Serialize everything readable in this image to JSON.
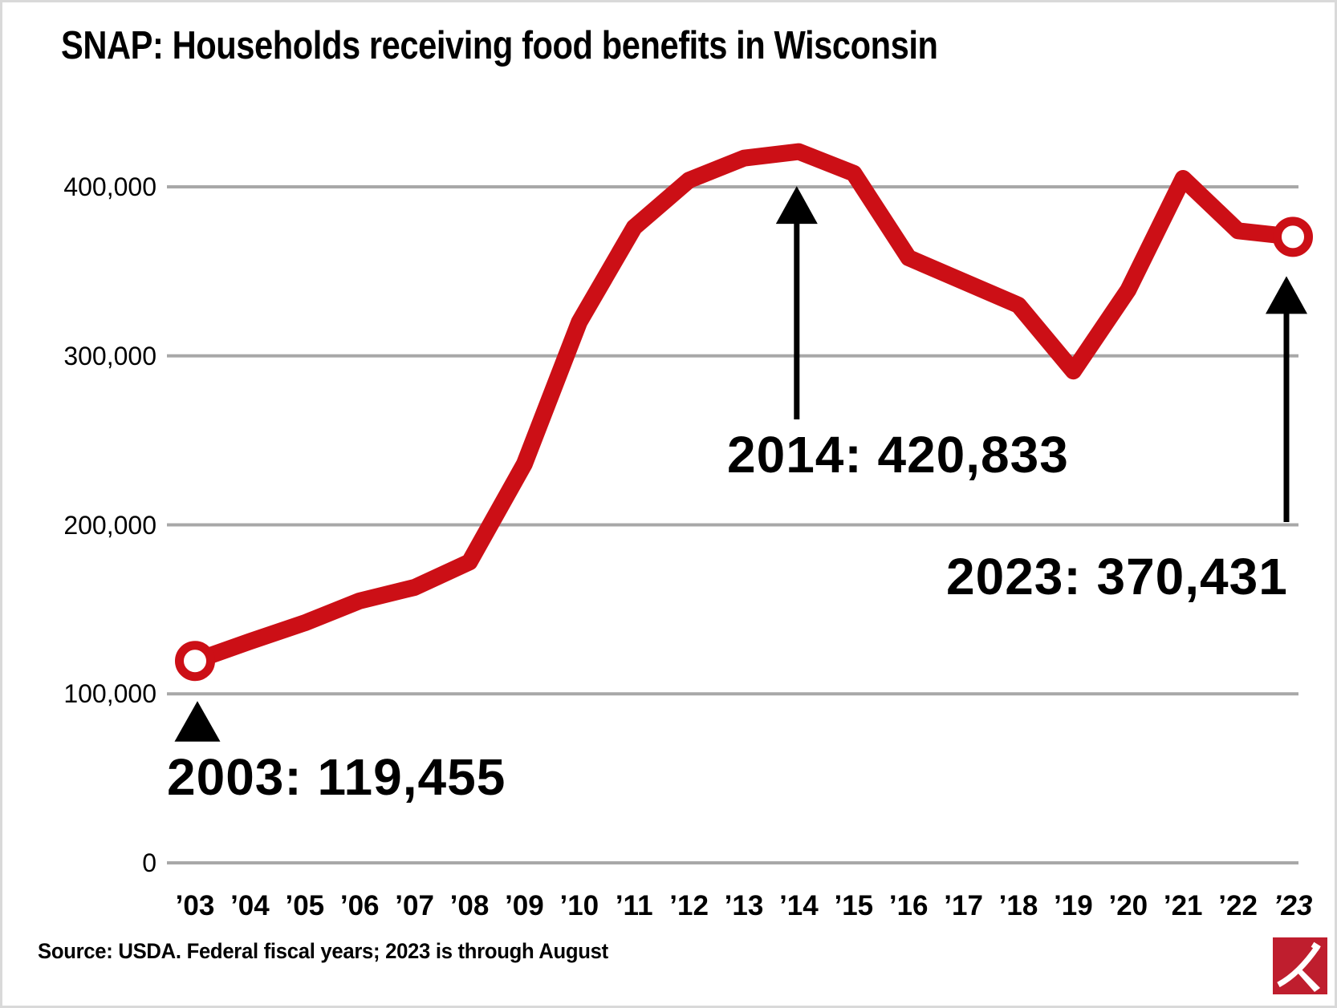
{
  "title": "SNAP: Households receiving food benefits in Wisconsin",
  "source": "Source: USDA. Federal fiscal years; 2023 is through August",
  "colors": {
    "line": "#cc0f16",
    "grid": "#a8a8a8",
    "text": "#000000",
    "annotation_arrow": "#000000",
    "logo_red": "#bf1e2e",
    "marker_fill": "#ffffff"
  },
  "y_axis": {
    "ticks": [
      "400,000",
      "300,000",
      "200,000",
      "100,000",
      "0"
    ]
  },
  "x_axis": {
    "labels": [
      "’03",
      "’04",
      "’05",
      "’06",
      "’07",
      "’08",
      "’09",
      "’10",
      "’11",
      "’12",
      "’13",
      "’14",
      "’15",
      "’16",
      "’17",
      "’18",
      "’19",
      "’20",
      "’21",
      "’22",
      "’23"
    ]
  },
  "annotations": [
    {
      "year": 2003,
      "value": 119455,
      "label": "2003: 119,455"
    },
    {
      "year": 2014,
      "value": 420833,
      "label": "2014: 420,833"
    },
    {
      "year": 2023,
      "value": 370431,
      "label": "2023: 370,431"
    }
  ],
  "logo": {
    "name": "pickaxe-logo"
  },
  "chart_data": {
    "type": "line",
    "title": "SNAP: Households receiving food benefits in Wisconsin",
    "x": [
      2003,
      2004,
      2005,
      2006,
      2007,
      2008,
      2009,
      2010,
      2011,
      2012,
      2013,
      2014,
      2015,
      2016,
      2017,
      2018,
      2019,
      2020,
      2021,
      2022,
      2023
    ],
    "x_tick_labels": [
      "’03",
      "’04",
      "’05",
      "’06",
      "’07",
      "’08",
      "’09",
      "’10",
      "’11",
      "’12",
      "’13",
      "’14",
      "’15",
      "’16",
      "’17",
      "’18",
      "’19",
      "’20",
      "’21",
      "’22",
      "’23"
    ],
    "series": [
      {
        "name": "Households receiving food benefits",
        "values": [
          119455,
          131000,
          142000,
          155000,
          163000,
          178000,
          236000,
          320000,
          376000,
          404000,
          417000,
          420833,
          408000,
          358000,
          344000,
          330000,
          291000,
          339000,
          405000,
          374000,
          370431
        ]
      }
    ],
    "labeled_points": [
      {
        "x": 2003,
        "y": 119455,
        "label": "2003: 119,455"
      },
      {
        "x": 2014,
        "y": 420833,
        "label": "2014: 420,833"
      },
      {
        "x": 2023,
        "y": 370431,
        "label": "2023: 370,431"
      }
    ],
    "y_ticks": [
      400000,
      300000,
      200000,
      100000,
      0
    ],
    "y_tick_labels": [
      "400,000",
      "300,000",
      "200,000",
      "100,000",
      "0"
    ],
    "ylim": [
      0,
      445000
    ],
    "grid": "horizontal",
    "legend_position": "none",
    "endpoint_markers": "open circles at first and last points",
    "xlabel": "",
    "ylabel": ""
  }
}
